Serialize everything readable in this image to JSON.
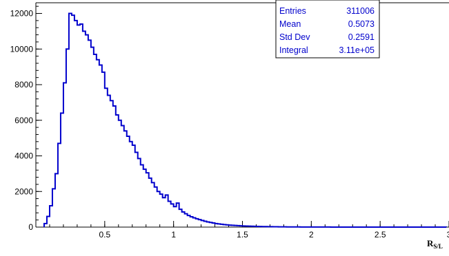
{
  "chart_data": {
    "type": "histogram",
    "title": "",
    "xlabel": {
      "main": "R",
      "sub": "S/L"
    },
    "ylabel": "",
    "xlim": [
      0.0,
      3.0
    ],
    "ylim": [
      0,
      12600
    ],
    "bin_width": 0.02,
    "grid": false,
    "x_ticks": [
      {
        "value": 0.5,
        "label": "0.5"
      },
      {
        "value": 1.0,
        "label": "1"
      },
      {
        "value": 1.5,
        "label": "1.5"
      },
      {
        "value": 2.0,
        "label": "2"
      },
      {
        "value": 2.5,
        "label": "2.5"
      },
      {
        "value": 3.0,
        "label": "3"
      }
    ],
    "y_ticks": [
      {
        "value": 0,
        "label": "0"
      },
      {
        "value": 2000,
        "label": "2000"
      },
      {
        "value": 4000,
        "label": "4000"
      },
      {
        "value": 6000,
        "label": "6000"
      },
      {
        "value": 8000,
        "label": "8000"
      },
      {
        "value": 10000,
        "label": "10000"
      },
      {
        "value": 12000,
        "label": "12000"
      }
    ],
    "series": [
      {
        "color": "#0000cc",
        "bins_low_edge_start": 0.06,
        "values": [
          200,
          600,
          1200,
          2150,
          3000,
          4700,
          6400,
          8100,
          10000,
          12000,
          11900,
          11600,
          11350,
          11400,
          11000,
          10800,
          10500,
          10100,
          9700,
          9400,
          9100,
          8700,
          7800,
          7400,
          7100,
          6800,
          6300,
          6000,
          5700,
          5400,
          5100,
          4800,
          4600,
          4200,
          3850,
          3500,
          3250,
          3050,
          2750,
          2500,
          2250,
          2000,
          1850,
          1650,
          1800,
          1450,
          1300,
          1150,
          1350,
          1000,
          850,
          750,
          650,
          580,
          520,
          470,
          420,
          370,
          330,
          290,
          260,
          230,
          200,
          180,
          160,
          140,
          125,
          110,
          100,
          90,
          80,
          72,
          65,
          58,
          52,
          47,
          42,
          38,
          34,
          31,
          28,
          25,
          22,
          20,
          18,
          16,
          15,
          13,
          12,
          11,
          10,
          9,
          8,
          7,
          7,
          6,
          5,
          5,
          4,
          4,
          4,
          3,
          3,
          3,
          2,
          2,
          2,
          2,
          2,
          1,
          1,
          1,
          1,
          1,
          1,
          1,
          1,
          1,
          1,
          1,
          1,
          1,
          1,
          1,
          1,
          1,
          1,
          1,
          1,
          1,
          1,
          1,
          1,
          1,
          1,
          1,
          1,
          1,
          1,
          1,
          1,
          1,
          1,
          1,
          1,
          1
        ]
      }
    ],
    "stats_box": {
      "position": "top-right",
      "rows": [
        {
          "label": "Entries",
          "value": "311006"
        },
        {
          "label": "Mean",
          "value": "0.5073"
        },
        {
          "label": "Std Dev",
          "value": "0.2591"
        },
        {
          "label": "Integral",
          "value": "3.11e+05"
        }
      ]
    }
  }
}
